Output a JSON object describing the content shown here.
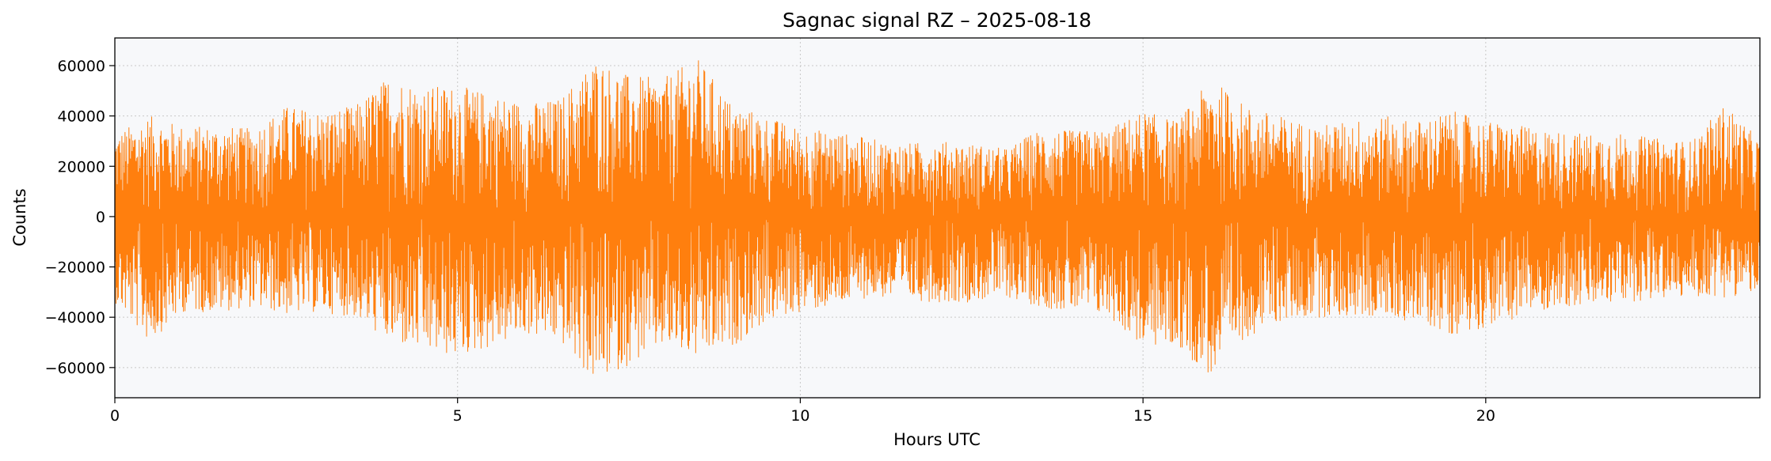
{
  "chart_data": {
    "type": "line",
    "title": "Sagnac signal RZ – 2025-08-18",
    "xlabel": "Hours UTC",
    "ylabel": "Counts",
    "xlim": [
      0,
      24
    ],
    "ylim": [
      -72000,
      71000
    ],
    "xticks": [
      0,
      5,
      10,
      15,
      20
    ],
    "yticks": [
      -60000,
      -40000,
      -20000,
      0,
      20000,
      40000,
      60000
    ],
    "grid": true,
    "legend": "none",
    "colors": {
      "line": "#ff7f0e",
      "plot_bg": "#f7f8fa",
      "grid": "#c8c8c8"
    },
    "series": [
      {
        "x": [
          0,
          0.5,
          1,
          1.5,
          2,
          2.5,
          3,
          3.5,
          4,
          4.5,
          5,
          5.5,
          6,
          6.5,
          7,
          7.5,
          8,
          8.5,
          9,
          9.5,
          10,
          10.5,
          11,
          11.5,
          12,
          12.5,
          13,
          13.5,
          14,
          14.5,
          15,
          15.5,
          16,
          16.5,
          17,
          17.5,
          18,
          18.5,
          19,
          19.5,
          20,
          20.5,
          21,
          21.5,
          22,
          22.5,
          23,
          23.5,
          24
        ],
        "max": [
          33000,
          40000,
          36000,
          36000,
          35000,
          44000,
          42000,
          44000,
          56000,
          52000,
          52000,
          49000,
          45000,
          47000,
          63000,
          56000,
          55000,
          63000,
          45000,
          40000,
          35000,
          34000,
          31000,
          29000,
          30000,
          29000,
          27000,
          35000,
          34000,
          35000,
          42000,
          38000,
          55000,
          44000,
          40000,
          36000,
          38000,
          40000,
          38000,
          42000,
          38000,
          36000,
          34000,
          33000,
          33000,
          31000,
          30000,
          45000,
          30000
        ],
        "min": [
          -34000,
          -50000,
          -38000,
          -38000,
          -36000,
          -39000,
          -38000,
          -40000,
          -50000,
          -54000,
          -56000,
          -52000,
          -47000,
          -50000,
          -66000,
          -59000,
          -52000,
          -57000,
          -52000,
          -42000,
          -38000,
          -36000,
          -32000,
          -33000,
          -34000,
          -34000,
          -32000,
          -36000,
          -38000,
          -40000,
          -52000,
          -52000,
          -64000,
          -48000,
          -42000,
          -40000,
          -40000,
          -40000,
          -42000,
          -47000,
          -44000,
          -40000,
          -36000,
          -36000,
          -34000,
          -33000,
          -32000,
          -32000,
          -30000
        ]
      }
    ]
  }
}
